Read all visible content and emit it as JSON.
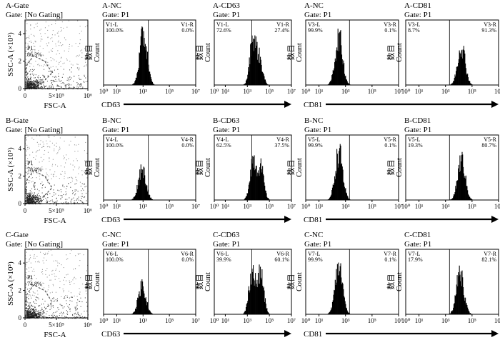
{
  "figure": {
    "arrow_labels": [
      "CD63",
      "CD81"
    ],
    "count_label_cn": "数目",
    "count_label": "Count",
    "ssc_label": "SSC-A (×10⁵)",
    "fsc_label": "FSC-A",
    "ssc_ticks": [
      "0",
      "2",
      "4"
    ],
    "fsc_ticks": [
      "0",
      "5×10⁵",
      "10⁶"
    ],
    "hist_ticks": [
      "10⁰",
      "10¹",
      "10³",
      "10⁵",
      "10⁷"
    ]
  },
  "chart_data": [
    {
      "type": "scatter",
      "panel": "A-Gate",
      "title": "A-Gate",
      "subtitle": "Gate: [No Gating]",
      "xlabel": "FSC-A",
      "ylabel": "SSC-A (×10⁵)",
      "gate": {
        "name": "P1",
        "percent": "86.3%"
      },
      "xlim": [
        0,
        1000000
      ],
      "ylim": [
        0,
        5
      ]
    },
    {
      "type": "histogram",
      "panel": "A-NC",
      "title": "A-NC",
      "subtitle": "Gate: P1",
      "marker": "CD63",
      "gates": [
        {
          "name": "V1-L",
          "percent": "100.0%"
        },
        {
          "name": "V1-R",
          "percent": "0.0%"
        }
      ],
      "peaks": [
        {
          "x": 1000,
          "height": 0.95
        }
      ]
    },
    {
      "type": "histogram",
      "panel": "A-CD63",
      "title": "A-CD63",
      "subtitle": "Gate: P1",
      "marker": "CD63",
      "gates": [
        {
          "name": "V1-L",
          "percent": "72.6%"
        },
        {
          "name": "V1-R",
          "percent": "27.4%"
        }
      ],
      "peaks": [
        {
          "x": 3000,
          "height": 0.85
        },
        {
          "x": 12000,
          "height": 0.45
        }
      ]
    },
    {
      "type": "histogram",
      "panel": "A-NC-CD81",
      "title": "A-NC",
      "subtitle": "Gate: P1",
      "marker": "CD81",
      "gates": [
        {
          "name": "V3-L",
          "percent": "99.9%"
        },
        {
          "name": "V3-R",
          "percent": "0.1%"
        }
      ],
      "peaks": [
        {
          "x": 300,
          "height": 0.9
        }
      ]
    },
    {
      "type": "histogram",
      "panel": "A-CD81",
      "title": "A-CD81",
      "subtitle": "Gate: P1",
      "marker": "CD81",
      "gates": [
        {
          "name": "V3-L",
          "percent": "8.7%"
        },
        {
          "name": "V3-R",
          "percent": "91.3%"
        }
      ],
      "peaks": [
        {
          "x": 15000,
          "height": 0.75
        }
      ]
    },
    {
      "type": "scatter",
      "panel": "B-Gate",
      "title": "B-Gate",
      "subtitle": "Gate: [No Gating]",
      "xlabel": "FSC-A",
      "ylabel": "SSC-A (×10⁵)",
      "gate": {
        "name": "P1",
        "percent": "78.4%"
      },
      "xlim": [
        0,
        1000000
      ],
      "ylim": [
        0,
        5
      ]
    },
    {
      "type": "histogram",
      "panel": "B-NC",
      "title": "B-NC",
      "subtitle": "Gate: P1",
      "marker": "CD63",
      "gates": [
        {
          "name": "V4-L",
          "percent": "100.0%"
        },
        {
          "name": "V4-R",
          "percent": "0.0%"
        }
      ],
      "peaks": [
        {
          "x": 800,
          "height": 0.6
        }
      ]
    },
    {
      "type": "histogram",
      "panel": "B-CD63",
      "title": "B-CD63",
      "subtitle": "Gate: P1",
      "marker": "CD63",
      "gates": [
        {
          "name": "V4-L",
          "percent": "62.5%"
        },
        {
          "name": "V4-R",
          "percent": "37.5%"
        }
      ],
      "peaks": [
        {
          "x": 3000,
          "height": 0.75
        },
        {
          "x": 15000,
          "height": 0.6
        }
      ]
    },
    {
      "type": "histogram",
      "panel": "B-NC-CD81",
      "title": "B-NC",
      "subtitle": "Gate: P1",
      "marker": "CD81",
      "gates": [
        {
          "name": "V5-L",
          "percent": "99.9%"
        },
        {
          "name": "V5-R",
          "percent": "0.1%"
        }
      ],
      "peaks": [
        {
          "x": 300,
          "height": 0.9
        }
      ]
    },
    {
      "type": "histogram",
      "panel": "B-CD81",
      "title": "B-CD81",
      "subtitle": "Gate: P1",
      "marker": "CD81",
      "gates": [
        {
          "name": "V5-L",
          "percent": "19.3%"
        },
        {
          "name": "V5-R",
          "percent": "80.7%"
        }
      ],
      "peaks": [
        {
          "x": 15000,
          "height": 0.75
        }
      ]
    },
    {
      "type": "scatter",
      "panel": "C-Gate",
      "title": "C-Gate",
      "subtitle": "Gate: [No Gating]",
      "xlabel": "FSC-A",
      "ylabel": "SSC-A (×10⁵)",
      "gate": {
        "name": "P1",
        "percent": "74.8%"
      },
      "xlim": [
        0,
        1000000
      ],
      "ylim": [
        0,
        5
      ]
    },
    {
      "type": "histogram",
      "panel": "C-NC",
      "title": "C-NC",
      "subtitle": "Gate: P1",
      "marker": "CD63",
      "gates": [
        {
          "name": "V6-L",
          "percent": "100.0%"
        },
        {
          "name": "V6-R",
          "percent": "0.0%"
        }
      ],
      "peaks": [
        {
          "x": 800,
          "height": 0.55
        }
      ]
    },
    {
      "type": "histogram",
      "panel": "C-CD63",
      "title": "C-CD63",
      "subtitle": "Gate: P1",
      "marker": "CD63",
      "gates": [
        {
          "name": "V6-L",
          "percent": "39.9%"
        },
        {
          "name": "V6-R",
          "percent": "60.1%"
        }
      ],
      "peaks": [
        {
          "x": 2500,
          "height": 0.8
        },
        {
          "x": 15000,
          "height": 0.75
        }
      ]
    },
    {
      "type": "histogram",
      "panel": "C-NC-CD81",
      "title": "C-NC",
      "subtitle": "Gate: P1",
      "marker": "CD81",
      "gates": [
        {
          "name": "V7-L",
          "percent": "99.9%"
        },
        {
          "name": "V7-R",
          "percent": "0.1%"
        }
      ],
      "peaks": [
        {
          "x": 300,
          "height": 0.9
        }
      ]
    },
    {
      "type": "histogram",
      "panel": "C-CD81",
      "title": "C-CD81",
      "subtitle": "Gate: P1",
      "marker": "CD81",
      "gates": [
        {
          "name": "V7-L",
          "percent": "17.9%"
        },
        {
          "name": "V7-R",
          "percent": "82.1%"
        }
      ],
      "peaks": [
        {
          "x": 12000,
          "height": 0.8
        }
      ]
    }
  ]
}
